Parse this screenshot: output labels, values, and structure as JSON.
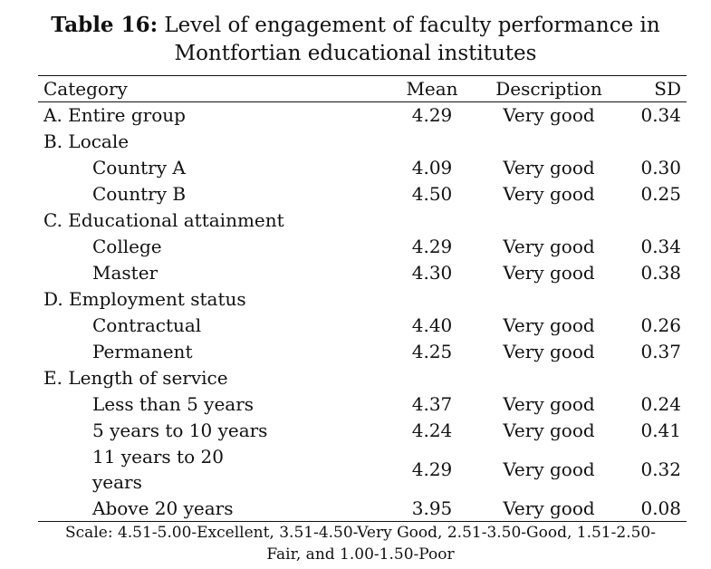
{
  "title": {
    "label": "Table 16:",
    "text": " Level of engagement of faculty performance in",
    "line2": "Montfortian educational institutes"
  },
  "headers": {
    "category": "Category",
    "mean": "Mean",
    "description": "Description",
    "sd": "SD"
  },
  "rows": [
    {
      "category": "A. Entire group",
      "mean": "4.29",
      "description": "Very good",
      "sd": "0.34"
    },
    {
      "category": "B. Locale"
    },
    {
      "category": "Country A",
      "mean": "4.09",
      "description": "Very good",
      "sd": "0.30"
    },
    {
      "category": "Country B",
      "mean": "4.50",
      "description": "Very good",
      "sd": "0.25"
    },
    {
      "category": "C. Educational attainment"
    },
    {
      "category": "College",
      "mean": "4.29",
      "description": "Very good",
      "sd": "0.34"
    },
    {
      "category": "Master",
      "mean": "4.30",
      "description": "Very good",
      "sd": "0.38"
    },
    {
      "category": "D. Employment status"
    },
    {
      "category": "Contractual",
      "mean": "4.40",
      "description": "Very good",
      "sd": "0.26"
    },
    {
      "category": "Permanent",
      "mean": "4.25",
      "description": "Very good",
      "sd": "0.37"
    },
    {
      "category": "E. Length of service"
    },
    {
      "category": "Less than 5 years",
      "mean": "4.37",
      "description": "Very good",
      "sd": "0.24"
    },
    {
      "category": "5 years to 10 years",
      "mean": "4.24",
      "description": "Very good",
      "sd": "0.41"
    },
    {
      "category": "11 years to 20 years",
      "mean": "4.29",
      "description": "Very good",
      "sd": "0.32"
    },
    {
      "category": "Above 20 years",
      "mean": "3.95",
      "description": "Very good",
      "sd": "0.08"
    }
  ],
  "footer": {
    "line1": "Scale: 4.51-5.00-Excellent, 3.51-4.50-Very Good, 2.51-3.50-Good, 1.51-2.50-",
    "line2": "Fair, and 1.00-1.50-Poor"
  }
}
